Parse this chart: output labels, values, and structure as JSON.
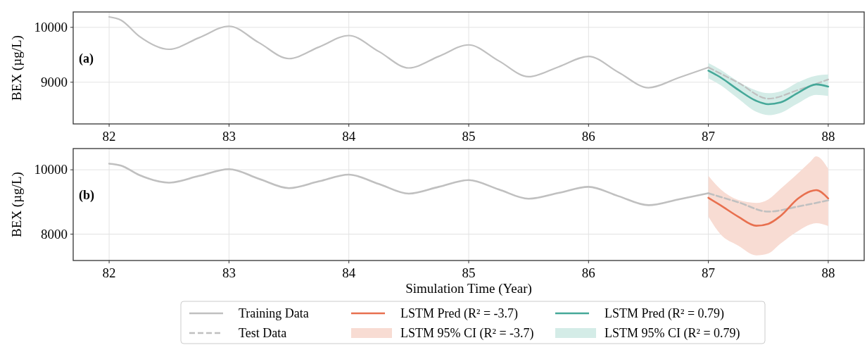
{
  "chart_data": [
    {
      "type": "line",
      "ylabel": "BEX (µg/L)",
      "annotations": [
        "(a)"
      ],
      "xlim": [
        81.7,
        88.3
      ],
      "xticks": [
        82,
        83,
        84,
        85,
        86,
        87,
        88
      ],
      "ylim": [
        8240,
        10280
      ],
      "yticks": [
        9000,
        10000
      ],
      "grid": true,
      "legend": "bottom",
      "series": [
        {
          "color": "#c0c0c0",
          "x": [
            82,
            82.1,
            82.25,
            82.5,
            82.75,
            83,
            83.25,
            83.5,
            83.75,
            84,
            84.25,
            84.5,
            84.75,
            85,
            85.25,
            85.5,
            85.75,
            86,
            86.25,
            86.5,
            86.75,
            87
          ],
          "values": [
            10190,
            10130,
            9840,
            9600,
            9810,
            10020,
            9720,
            9430,
            9640,
            9850,
            9560,
            9260,
            9470,
            9680,
            9390,
            9100,
            9280,
            9470,
            9180,
            8900,
            9080,
            9270
          ]
        },
        {
          "color": "#c0c0c0",
          "line_style": "dashed",
          "x": [
            87,
            87.25,
            87.5,
            87.75,
            88
          ],
          "values": [
            9270,
            8990,
            8700,
            8860,
            9050
          ]
        },
        {
          "name": "LSTM Pred (R² = 0.79)",
          "color": "#45a899",
          "x": [
            87,
            87.1,
            87.25,
            87.4,
            87.5,
            87.6,
            87.75,
            87.9,
            88
          ],
          "values": [
            9210,
            9090,
            8860,
            8660,
            8600,
            8630,
            8810,
            8960,
            8920
          ],
          "lower": [
            9070,
            8950,
            8700,
            8460,
            8400,
            8440,
            8620,
            8770,
            8750
          ],
          "upper": [
            9350,
            9230,
            9010,
            8850,
            8800,
            8830,
            9000,
            9120,
            9140
          ]
        },
        {
          "type": "area",
          "name": "LSTM 95% CI (R² = 0.79)",
          "color": "#d4ece7"
        }
      ]
    },
    {
      "type": "line",
      "xlabel": "Simulation Time (Year)",
      "ylabel": "BEX (µg/L)",
      "annotations": [
        "(b)"
      ],
      "xlim": [
        81.7,
        88.3
      ],
      "xticks": [
        82,
        83,
        84,
        85,
        86,
        87,
        88
      ],
      "ylim": [
        7180,
        10660
      ],
      "yticks": [
        8000,
        10000
      ],
      "grid": true,
      "legend": "bottom",
      "series": [
        {
          "name": "Training Data",
          "color": "#c0c0c0",
          "x": [
            82,
            82.1,
            82.25,
            82.5,
            82.75,
            83,
            83.25,
            83.5,
            83.75,
            84,
            84.25,
            84.5,
            84.75,
            85,
            85.25,
            85.5,
            85.75,
            86,
            86.25,
            86.5,
            86.75,
            87
          ],
          "values": [
            10190,
            10130,
            9840,
            9600,
            9810,
            10020,
            9720,
            9430,
            9640,
            9850,
            9560,
            9260,
            9470,
            9680,
            9390,
            9100,
            9280,
            9470,
            9180,
            8900,
            9080,
            9270
          ]
        },
        {
          "name": "Test Data",
          "color": "#c0c0c0",
          "line_style": "dashed",
          "x": [
            87,
            87.25,
            87.5,
            87.75,
            88
          ],
          "values": [
            9270,
            8990,
            8700,
            8860,
            9050
          ]
        },
        {
          "name": "LSTM Pred (R² = -3.7)",
          "color": "#e8704f",
          "x": [
            87,
            87.1,
            87.25,
            87.4,
            87.5,
            87.6,
            87.75,
            87.85,
            87.9,
            88
          ],
          "values": [
            9130,
            8900,
            8540,
            8260,
            8320,
            8560,
            9110,
            9330,
            9370,
            9110
          ],
          "lower": [
            8540,
            8000,
            7640,
            7340,
            7400,
            7700,
            8100,
            8300,
            8340,
            8250
          ],
          "upper": [
            9810,
            9400,
            9060,
            8970,
            9080,
            9400,
            9900,
            10250,
            10420,
            10030
          ]
        },
        {
          "type": "area",
          "name": "LSTM 95% CI (R² = -3.7)",
          "color": "#f8dcd3"
        }
      ]
    }
  ]
}
